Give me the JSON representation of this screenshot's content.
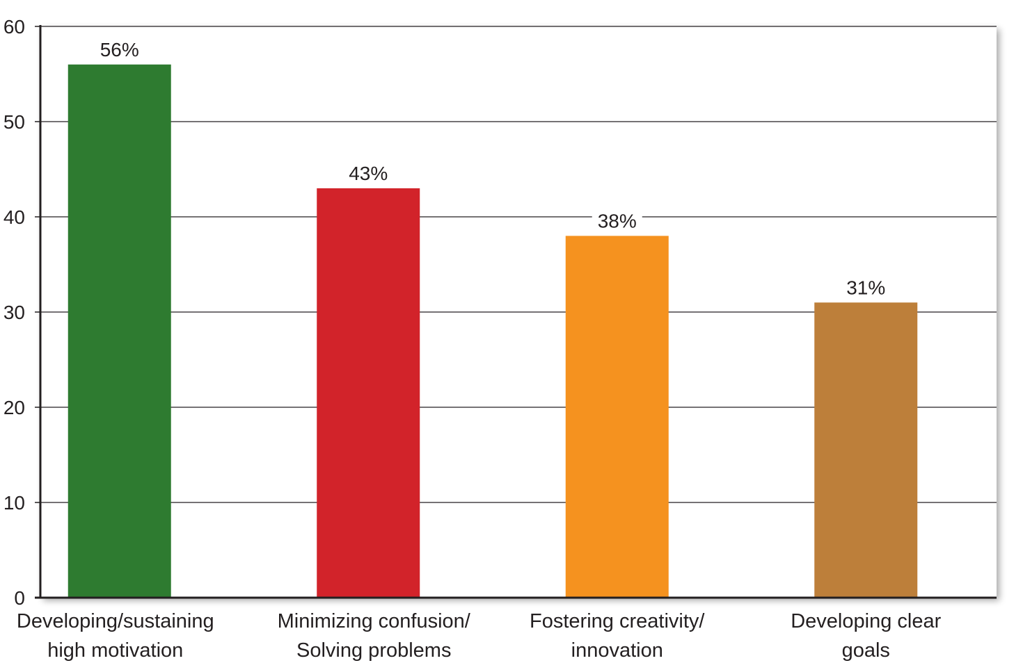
{
  "chart_data": {
    "type": "bar",
    "title": "",
    "xlabel": "",
    "ylabel": "",
    "ylim": [
      0,
      60
    ],
    "yticks": [
      0,
      10,
      20,
      30,
      40,
      50,
      60
    ],
    "grid": true,
    "legend": "none",
    "categories": [
      [
        "Developing/sustaining",
        "high motivation"
      ],
      [
        "Minimizing confusion/",
        "Solving problems"
      ],
      [
        "Fostering creativity/",
        "innovation"
      ],
      [
        "Developing clear",
        "goals"
      ]
    ],
    "values": [
      56,
      43,
      38,
      31
    ],
    "data_labels": [
      "56%",
      "43%",
      "38%",
      "31%"
    ],
    "colors": [
      "#2e7b30",
      "#d2232a",
      "#f5921f",
      "#bd7f3a"
    ]
  }
}
